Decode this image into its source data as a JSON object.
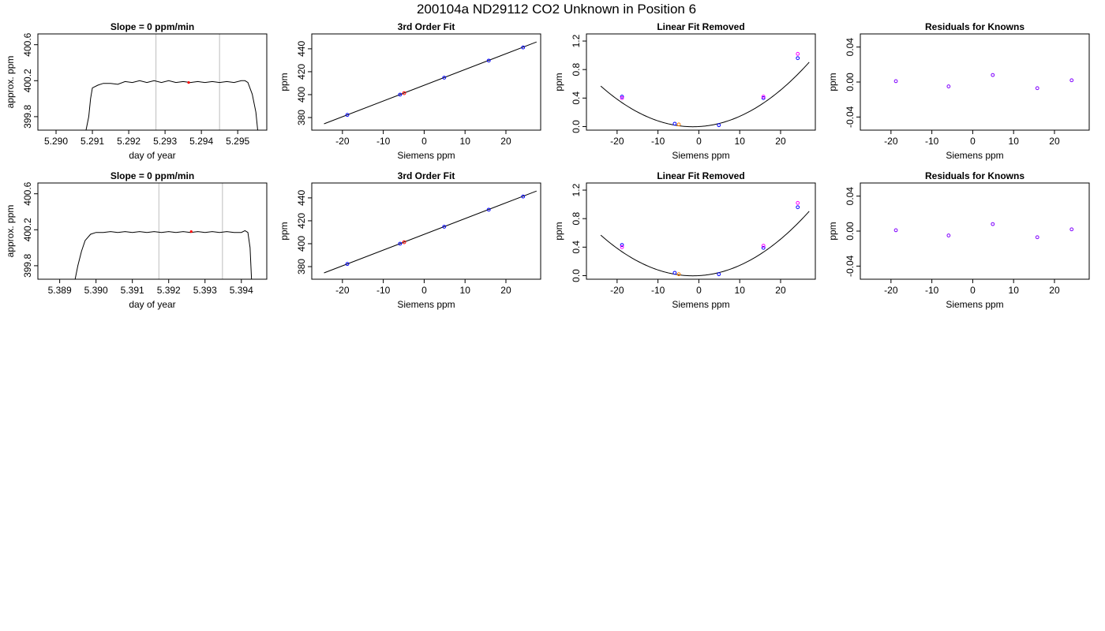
{
  "figure": {
    "title": "200104a     ND29112   CO2 Unknown in Position  6"
  },
  "colors": {
    "axes": "#000000",
    "gridline": "#bebebe",
    "reference_point": "#0000ff",
    "fitted_point": "#ff00ff",
    "unknown_point": "#ff0000",
    "unknown_point_alt": "#ff8000",
    "residual_point": "#8000ff"
  },
  "chart_data": [
    {
      "id": "r1c1",
      "type": "line",
      "title": "Slope =  0  ppm/min",
      "xlabel": "day of year",
      "ylabel": "approx. ppm",
      "xlim": [
        5.2895,
        5.2958
      ],
      "ylim": [
        399.65,
        400.72
      ],
      "xticks": [
        5.29,
        5.291,
        5.292,
        5.293,
        5.294,
        5.295
      ],
      "xtick_labels": [
        "5.290",
        "5.291",
        "5.292",
        "5.293",
        "5.294",
        "5.295"
      ],
      "yticks": [
        399.8,
        400.2,
        400.6
      ],
      "ytick_labels": [
        "399.8",
        "400.2",
        "400.6"
      ],
      "vlines": [
        5.29275,
        5.2945
      ],
      "trace": [
        [
          5.2908,
          399.6
        ],
        [
          5.2909,
          399.8
        ],
        [
          5.29095,
          400.0
        ],
        [
          5.291,
          400.12
        ],
        [
          5.29115,
          400.15
        ],
        [
          5.2913,
          400.17
        ],
        [
          5.2915,
          400.17
        ],
        [
          5.2917,
          400.16
        ],
        [
          5.2919,
          400.19
        ],
        [
          5.2921,
          400.18
        ],
        [
          5.2923,
          400.2
        ],
        [
          5.2925,
          400.18
        ],
        [
          5.2927,
          400.2
        ],
        [
          5.2929,
          400.18
        ],
        [
          5.2931,
          400.2
        ],
        [
          5.2933,
          400.18
        ],
        [
          5.2935,
          400.19
        ],
        [
          5.2937,
          400.18
        ],
        [
          5.2939,
          400.19
        ],
        [
          5.2941,
          400.18
        ],
        [
          5.2943,
          400.19
        ],
        [
          5.2945,
          400.18
        ],
        [
          5.2947,
          400.19
        ],
        [
          5.2949,
          400.18
        ],
        [
          5.2951,
          400.2
        ],
        [
          5.2952,
          400.2
        ],
        [
          5.29528,
          400.18
        ],
        [
          5.2954,
          400.05
        ],
        [
          5.2955,
          399.85
        ],
        [
          5.29555,
          399.65
        ]
      ],
      "markers": [
        {
          "x": 5.29365,
          "y": 400.18,
          "color": "#ff0000"
        }
      ]
    },
    {
      "id": "r1c2",
      "type": "scatter",
      "title": "3rd Order Fit",
      "xlabel": "Siemens ppm",
      "ylabel": "ppm",
      "xlim": [
        -27.5,
        28.5
      ],
      "ylim": [
        369,
        453
      ],
      "xticks": [
        -20,
        -10,
        0,
        10,
        20
      ],
      "xtick_labels": [
        "-20",
        "-10",
        "0",
        "10",
        "20"
      ],
      "yticks": [
        380,
        400,
        420,
        440
      ],
      "ytick_labels": [
        "380",
        "400",
        "420",
        "440"
      ],
      "line": [
        [
          -24.5,
          374.5
        ],
        [
          27.5,
          446.0
        ]
      ],
      "points": [
        {
          "x": -18.8,
          "y": 382.3,
          "color": "#0000ff"
        },
        {
          "x": -5.9,
          "y": 400.0,
          "color": "#0000ff"
        },
        {
          "x": 4.9,
          "y": 414.8,
          "color": "#0000ff"
        },
        {
          "x": 15.8,
          "y": 429.7,
          "color": "#0000ff"
        },
        {
          "x": 24.2,
          "y": 441.2,
          "color": "#0000ff"
        },
        {
          "x": -4.9,
          "y": 401.3,
          "color": "#ff0000"
        }
      ]
    },
    {
      "id": "r1c3",
      "type": "scatter",
      "title": "Linear Fit Removed",
      "xlabel": "Siemens ppm",
      "ylabel": "ppm",
      "xlim": [
        -27.5,
        28.5
      ],
      "ylim": [
        -0.05,
        1.3
      ],
      "xticks": [
        -20,
        -10,
        0,
        10,
        20
      ],
      "xtick_labels": [
        "-20",
        "-10",
        "0",
        "10",
        "20"
      ],
      "yticks": [
        0.0,
        0.4,
        0.8,
        1.2
      ],
      "ytick_labels": [
        "0.0",
        "0.4",
        "0.8",
        "1.2"
      ],
      "curve": {
        "a": 0.00112,
        "b": 0.0032,
        "c": 0.0,
        "x_from": -24.0,
        "x_to": 27.0
      },
      "points": [
        {
          "x": -18.8,
          "y": 0.42,
          "color": "#0000ff"
        },
        {
          "x": -18.8,
          "y": 0.4,
          "color": "#ff00ff"
        },
        {
          "x": -5.9,
          "y": 0.04,
          "color": "#0000ff"
        },
        {
          "x": 4.9,
          "y": 0.02,
          "color": "#0000ff"
        },
        {
          "x": 15.8,
          "y": 0.4,
          "color": "#0000ff"
        },
        {
          "x": 15.8,
          "y": 0.42,
          "color": "#ff00ff"
        },
        {
          "x": 24.2,
          "y": 0.96,
          "color": "#0000ff"
        },
        {
          "x": 24.2,
          "y": 1.02,
          "color": "#ff00ff"
        },
        {
          "x": -4.9,
          "y": 0.03,
          "color": "#ff8000"
        }
      ]
    },
    {
      "id": "r1c4",
      "type": "scatter",
      "title": "Residuals for Knowns",
      "xlabel": "Siemens ppm",
      "ylabel": "ppm",
      "xlim": [
        -27.5,
        28.5
      ],
      "ylim": [
        -0.055,
        0.055
      ],
      "xticks": [
        -20,
        -10,
        0,
        10,
        20
      ],
      "xtick_labels": [
        "-20",
        "-10",
        "0",
        "10",
        "20"
      ],
      "yticks": [
        -0.04,
        0.0,
        0.04
      ],
      "ytick_labels": [
        "-0.04",
        "0.00",
        "0.04"
      ],
      "points": [
        {
          "x": -18.8,
          "y": 0.001,
          "color": "#8000ff"
        },
        {
          "x": -5.9,
          "y": -0.005,
          "color": "#8000ff"
        },
        {
          "x": 4.9,
          "y": 0.008,
          "color": "#8000ff"
        },
        {
          "x": 15.8,
          "y": -0.007,
          "color": "#8000ff"
        },
        {
          "x": 24.2,
          "y": 0.002,
          "color": "#8000ff"
        }
      ]
    },
    {
      "id": "r2c1",
      "type": "line",
      "title": "Slope =  0  ppm/min",
      "xlabel": "day of year",
      "ylabel": "approx. ppm",
      "xlim": [
        5.3884,
        5.3947
      ],
      "ylim": [
        399.65,
        400.72
      ],
      "xticks": [
        5.389,
        5.39,
        5.391,
        5.392,
        5.393,
        5.394
      ],
      "xtick_labels": [
        "5.389",
        "5.390",
        "5.391",
        "5.392",
        "5.393",
        "5.394"
      ],
      "yticks": [
        399.8,
        400.2,
        400.6
      ],
      "ytick_labels": [
        "399.8",
        "400.2",
        "400.6"
      ],
      "vlines": [
        5.39173,
        5.39348
      ],
      "trace": [
        [
          5.3894,
          399.6
        ],
        [
          5.3895,
          399.8
        ],
        [
          5.3896,
          399.96
        ],
        [
          5.3897,
          400.08
        ],
        [
          5.38985,
          400.15
        ],
        [
          5.39,
          400.17
        ],
        [
          5.3902,
          400.17
        ],
        [
          5.3904,
          400.18
        ],
        [
          5.3906,
          400.17
        ],
        [
          5.3908,
          400.18
        ],
        [
          5.391,
          400.17
        ],
        [
          5.3912,
          400.18
        ],
        [
          5.3914,
          400.17
        ],
        [
          5.3916,
          400.18
        ],
        [
          5.3918,
          400.17
        ],
        [
          5.392,
          400.18
        ],
        [
          5.3922,
          400.17
        ],
        [
          5.3924,
          400.18
        ],
        [
          5.3926,
          400.17
        ],
        [
          5.3928,
          400.18
        ],
        [
          5.393,
          400.17
        ],
        [
          5.3932,
          400.18
        ],
        [
          5.3934,
          400.17
        ],
        [
          5.3936,
          400.18
        ],
        [
          5.3938,
          400.17
        ],
        [
          5.394,
          400.17
        ],
        [
          5.3941,
          400.19
        ],
        [
          5.39418,
          400.17
        ],
        [
          5.39424,
          400.0
        ],
        [
          5.39428,
          399.65
        ]
      ],
      "markers": [
        {
          "x": 5.39262,
          "y": 400.18,
          "color": "#ff0000"
        }
      ]
    },
    {
      "id": "r2c2",
      "type": "scatter",
      "title": "3rd Order Fit",
      "xlabel": "Siemens ppm",
      "ylabel": "ppm",
      "xlim": [
        -27.5,
        28.5
      ],
      "ylim": [
        369,
        453
      ],
      "xticks": [
        -20,
        -10,
        0,
        10,
        20
      ],
      "xtick_labels": [
        "-20",
        "-10",
        "0",
        "10",
        "20"
      ],
      "yticks": [
        380,
        400,
        420,
        440
      ],
      "ytick_labels": [
        "380",
        "400",
        "420",
        "440"
      ],
      "line": [
        [
          -24.5,
          374.5
        ],
        [
          27.5,
          446.0
        ]
      ],
      "points": [
        {
          "x": -18.8,
          "y": 382.3,
          "color": "#0000ff"
        },
        {
          "x": -5.9,
          "y": 400.0,
          "color": "#0000ff"
        },
        {
          "x": 4.9,
          "y": 414.8,
          "color": "#0000ff"
        },
        {
          "x": 15.8,
          "y": 429.7,
          "color": "#0000ff"
        },
        {
          "x": 24.2,
          "y": 441.2,
          "color": "#0000ff"
        },
        {
          "x": -4.9,
          "y": 401.3,
          "color": "#ff0000"
        }
      ]
    },
    {
      "id": "r2c3",
      "type": "scatter",
      "title": "Linear Fit Removed",
      "xlabel": "Siemens ppm",
      "ylabel": "ppm",
      "xlim": [
        -27.5,
        28.5
      ],
      "ylim": [
        -0.05,
        1.3
      ],
      "xticks": [
        -20,
        -10,
        0,
        10,
        20
      ],
      "xtick_labels": [
        "-20",
        "-10",
        "0",
        "10",
        "20"
      ],
      "yticks": [
        0.0,
        0.4,
        0.8,
        1.2
      ],
      "ytick_labels": [
        "0.0",
        "0.4",
        "0.8",
        "1.2"
      ],
      "curve": {
        "a": 0.00112,
        "b": 0.0032,
        "c": 0.0,
        "x_from": -24.0,
        "x_to": 27.0
      },
      "points": [
        {
          "x": -18.8,
          "y": 0.43,
          "color": "#0000ff"
        },
        {
          "x": -18.8,
          "y": 0.4,
          "color": "#ff00ff"
        },
        {
          "x": -5.9,
          "y": 0.04,
          "color": "#0000ff"
        },
        {
          "x": 4.9,
          "y": 0.02,
          "color": "#0000ff"
        },
        {
          "x": 15.8,
          "y": 0.39,
          "color": "#0000ff"
        },
        {
          "x": 15.8,
          "y": 0.42,
          "color": "#ff00ff"
        },
        {
          "x": 24.2,
          "y": 0.96,
          "color": "#0000ff"
        },
        {
          "x": 24.2,
          "y": 1.02,
          "color": "#ff00ff"
        },
        {
          "x": -4.9,
          "y": 0.02,
          "color": "#ff8000"
        }
      ]
    },
    {
      "id": "r2c4",
      "type": "scatter",
      "title": "Residuals for Knowns",
      "xlabel": "Siemens ppm",
      "ylabel": "ppm",
      "xlim": [
        -27.5,
        28.5
      ],
      "ylim": [
        -0.055,
        0.055
      ],
      "xticks": [
        -20,
        -10,
        0,
        10,
        20
      ],
      "xtick_labels": [
        "-20",
        "-10",
        "0",
        "10",
        "20"
      ],
      "yticks": [
        -0.04,
        0.0,
        0.04
      ],
      "ytick_labels": [
        "-0.04",
        "0.00",
        "0.04"
      ],
      "points": [
        {
          "x": -18.8,
          "y": 0.001,
          "color": "#8000ff"
        },
        {
          "x": -5.9,
          "y": -0.005,
          "color": "#8000ff"
        },
        {
          "x": 4.9,
          "y": 0.008,
          "color": "#8000ff"
        },
        {
          "x": 15.8,
          "y": -0.007,
          "color": "#8000ff"
        },
        {
          "x": 24.2,
          "y": 0.002,
          "color": "#8000ff"
        }
      ]
    }
  ]
}
